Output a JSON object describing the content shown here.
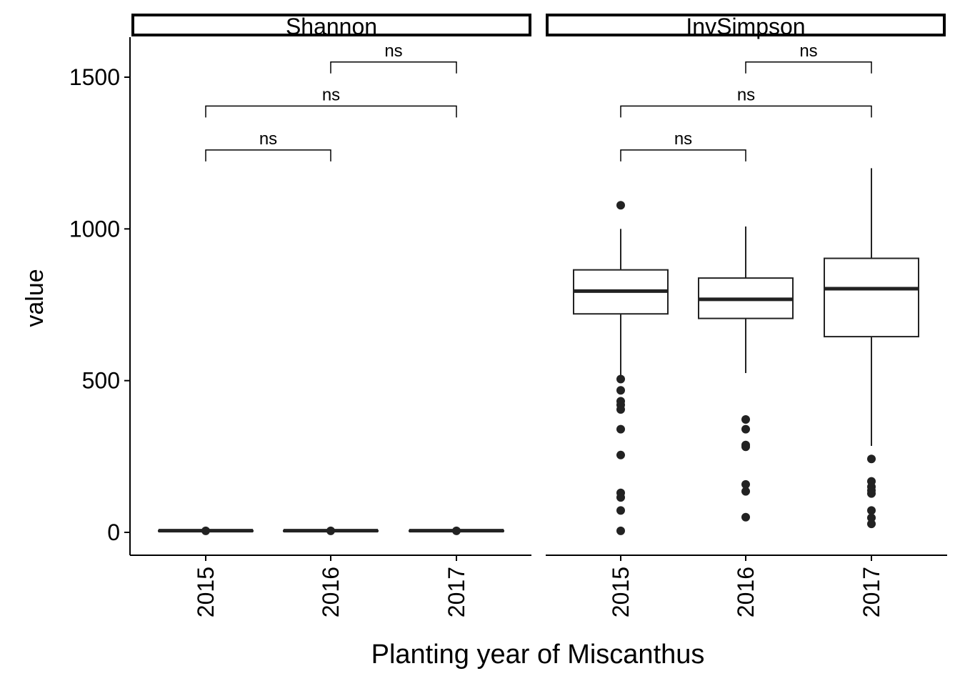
{
  "chart_data": {
    "type": "boxplot",
    "xlabel": "Planting year of Miscanthus",
    "ylabel": "value",
    "ylim": [
      -75,
      1640
    ],
    "yticks": [
      0,
      500,
      1000,
      1500
    ],
    "ytick_labels": [
      "0",
      "500",
      "1000",
      "1500"
    ],
    "categories": [
      "2015",
      "2016",
      "2017"
    ],
    "grid": false,
    "facets": [
      {
        "name": "Shannon",
        "boxes": [
          {
            "category": "2015",
            "whisker_low": 4,
            "q1": 5,
            "median": 5.5,
            "q3": 6,
            "whisker_high": 7,
            "outliers": [
              5
            ]
          },
          {
            "category": "2016",
            "whisker_low": 4,
            "q1": 5,
            "median": 5.5,
            "q3": 6,
            "whisker_high": 7,
            "outliers": [
              5
            ]
          },
          {
            "category": "2017",
            "whisker_low": 4,
            "q1": 5,
            "median": 5.5,
            "q3": 6,
            "whisker_high": 7,
            "outliers": [
              5
            ]
          }
        ],
        "comparisons": [
          {
            "from": "2015",
            "to": "2016",
            "y": 1260,
            "label": "ns"
          },
          {
            "from": "2015",
            "to": "2017",
            "y": 1405,
            "label": "ns"
          },
          {
            "from": "2016",
            "to": "2017",
            "y": 1550,
            "label": "ns"
          }
        ]
      },
      {
        "name": "InvSimpson",
        "boxes": [
          {
            "category": "2015",
            "whisker_low": 510,
            "q1": 720,
            "median": 795,
            "q3": 865,
            "whisker_high": 1000,
            "outliers": [
              1078,
              505,
              468,
              432,
              420,
              405,
              340,
              255,
              130,
              115,
              72,
              5
            ]
          },
          {
            "category": "2016",
            "whisker_low": 525,
            "q1": 705,
            "median": 768,
            "q3": 838,
            "whisker_high": 1008,
            "outliers": [
              372,
              340,
              288,
              282,
              158,
              135,
              50
            ]
          },
          {
            "category": "2017",
            "whisker_low": 285,
            "q1": 645,
            "median": 803,
            "q3": 903,
            "whisker_high": 1200,
            "outliers": [
              242,
              168,
              150,
              138,
              128,
              72,
              48,
              28
            ]
          }
        ],
        "comparisons": [
          {
            "from": "2015",
            "to": "2016",
            "y": 1260,
            "label": "ns"
          },
          {
            "from": "2015",
            "to": "2017",
            "y": 1405,
            "label": "ns"
          },
          {
            "from": "2016",
            "to": "2017",
            "y": 1550,
            "label": "ns"
          }
        ]
      }
    ]
  }
}
